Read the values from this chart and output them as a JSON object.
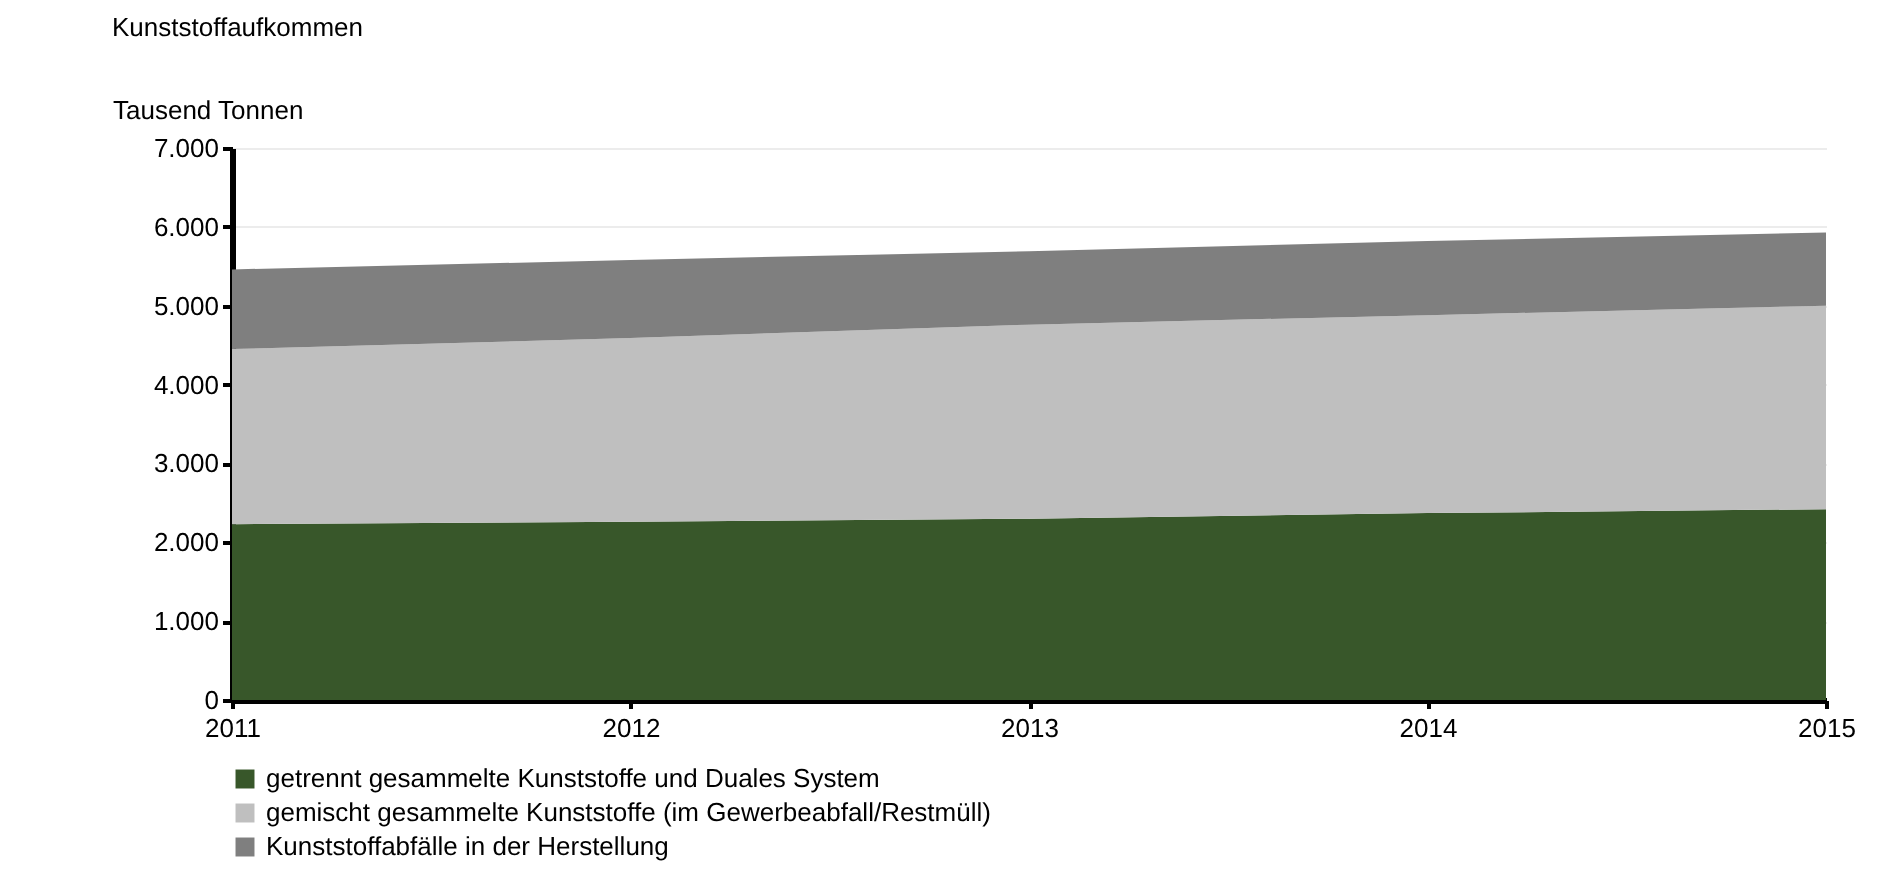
{
  "chart_data": {
    "type": "area",
    "title": "Kunststoffaufkommen",
    "ylabel": "Tausend Tonnen",
    "x": [
      2011,
      2012,
      2013,
      2014,
      2015
    ],
    "stacked": true,
    "series": [
      {
        "name": "getrennt gesammelte Kunststoffe und Duales System",
        "color": "#38572a",
        "values": [
          2230,
          2260,
          2300,
          2370,
          2420
        ]
      },
      {
        "name": "gemischt gesammelte Kunststoffe (im Gewerbeabfall/Restmüll)",
        "color": "#bfbfbf",
        "values": [
          2220,
          2330,
          2460,
          2510,
          2580
        ]
      },
      {
        "name": "Kunststoffabfälle in der Herstellung",
        "color": "#7f7f7f",
        "values": [
          1010,
          990,
          930,
          940,
          930
        ]
      }
    ],
    "xlim": [
      2011,
      2015
    ],
    "xticks": [
      2011,
      2012,
      2013,
      2014,
      2015
    ],
    "ylim": [
      0,
      7000
    ],
    "yticks": [
      {
        "value": 0,
        "label": "0"
      },
      {
        "value": 1000,
        "label": "1.000"
      },
      {
        "value": 2000,
        "label": "2.000"
      },
      {
        "value": 3000,
        "label": "3.000"
      },
      {
        "value": 4000,
        "label": "4.000"
      },
      {
        "value": 5000,
        "label": "5.000"
      },
      {
        "value": 6000,
        "label": "6.000"
      },
      {
        "value": 7000,
        "label": "7.000"
      }
    ],
    "grid": "y",
    "legend": "bottom"
  }
}
